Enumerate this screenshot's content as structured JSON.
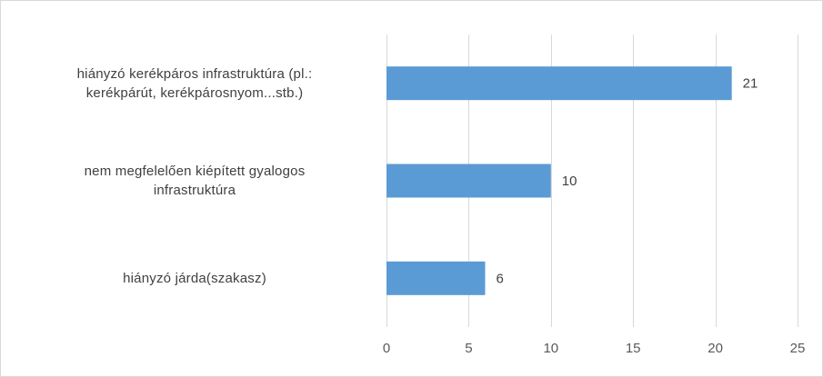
{
  "chart_data": {
    "type": "bar",
    "orientation": "horizontal",
    "categories": [
      "hiányzó kerékpáros infrastruktúra (pl.: kerékpárút, kerékpárosnyom...stb.)",
      "nem megfelelően kiépített gyalogos infrastruktúra",
      "hiányzó járda(szakasz)"
    ],
    "category_lines": [
      [
        "hiányzó kerékpáros infrastruktúra (pl.:",
        "kerékpárút, kerékpárosnyom...stb.)"
      ],
      [
        "nem megfelelően kiépített gyalogos",
        "infrastruktúra"
      ],
      [
        "hiányzó járda(szakasz)"
      ]
    ],
    "values": [
      21,
      10,
      6
    ],
    "data_labels": [
      "21",
      "10",
      "6"
    ],
    "xlim": [
      0,
      25
    ],
    "x_ticks": [
      0,
      5,
      10,
      15,
      20,
      25
    ],
    "x_tick_labels": [
      "0",
      "5",
      "10",
      "15",
      "20",
      "25"
    ],
    "grid": "vertical",
    "legend": "none",
    "bar_color": "#5b9bd5",
    "grid_color": "#d9d9d9"
  }
}
